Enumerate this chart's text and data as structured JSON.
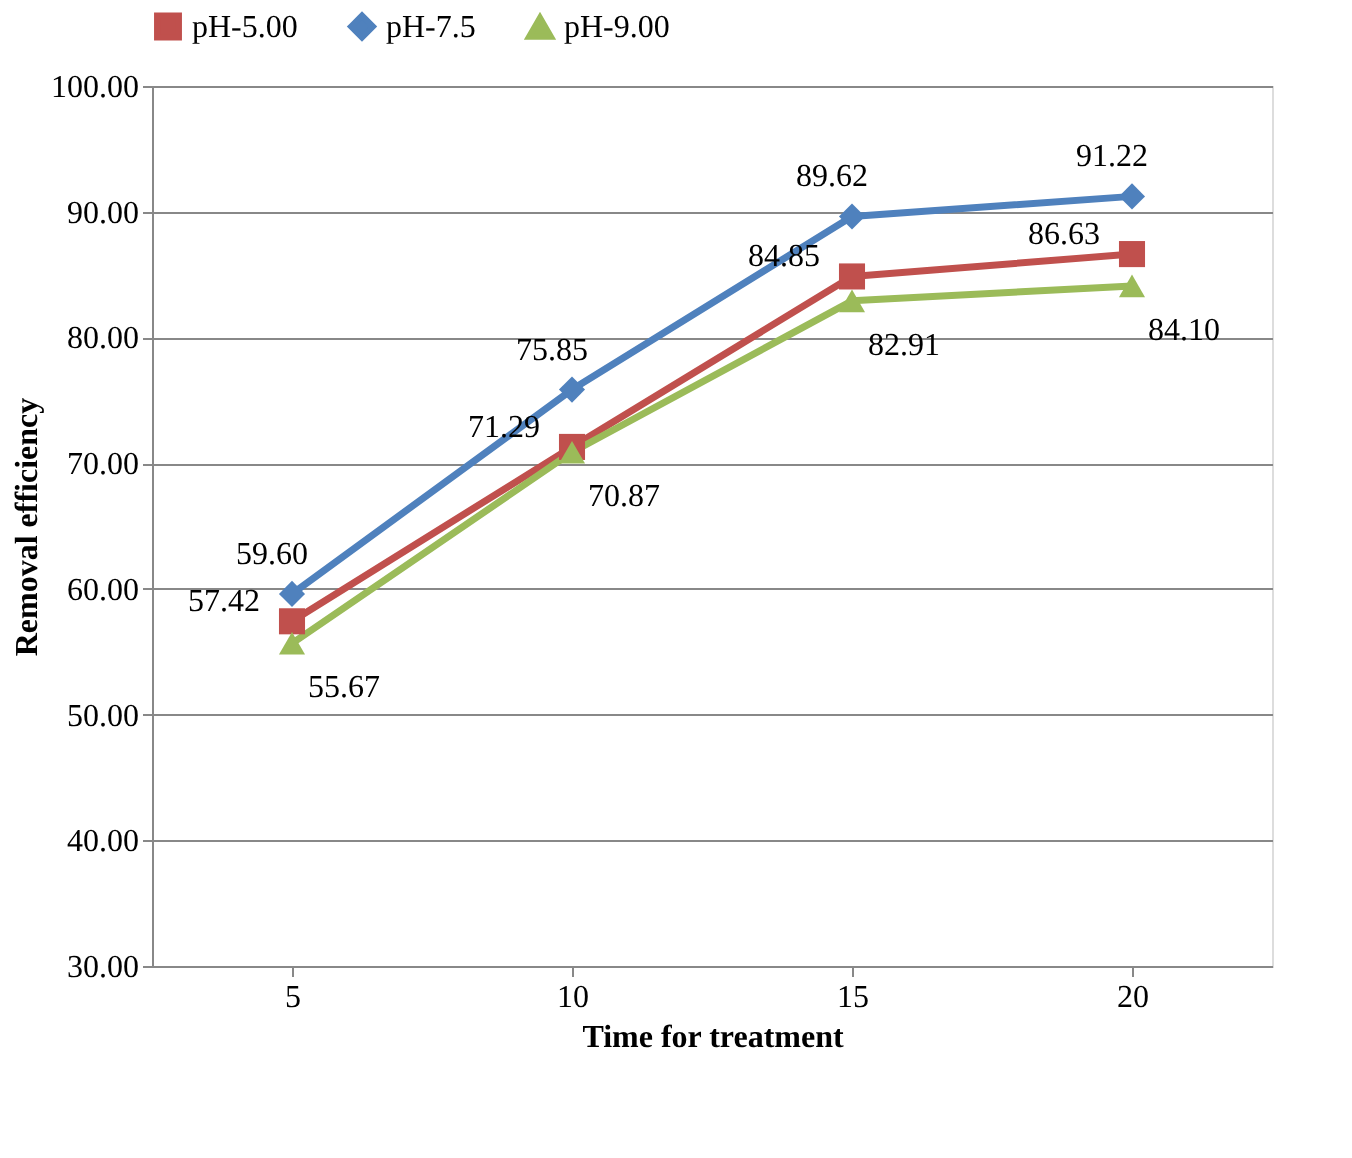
{
  "chart_data": {
    "type": "line",
    "xlabel": "Time for treatment",
    "ylabel": "Removal efficiency",
    "categories": [
      "5",
      "10",
      "15",
      "20"
    ],
    "series": [
      {
        "name": "pH-5.00",
        "color": "#c0504d",
        "marker": "square",
        "values": [
          57.42,
          71.29,
          84.85,
          86.63
        ],
        "value_labels": [
          "57.42",
          "71.29",
          "84.85",
          "86.63"
        ]
      },
      {
        "name": "pH-7.5",
        "color": "#4f81bd",
        "marker": "diamond",
        "values": [
          59.6,
          75.85,
          89.62,
          91.22
        ],
        "value_labels": [
          "59.60",
          "75.85",
          "89.62",
          "91.22"
        ]
      },
      {
        "name": "pH-9.00",
        "color": "#9bbb59",
        "marker": "triangle",
        "values": [
          55.67,
          70.87,
          82.91,
          84.1
        ],
        "value_labels": [
          "55.67",
          "70.87",
          "82.91",
          "84.10"
        ]
      }
    ],
    "ylim": [
      30,
      100
    ],
    "yticks": [
      {
        "value": 30,
        "label": "30.00"
      },
      {
        "value": 40,
        "label": "40.00"
      },
      {
        "value": 50,
        "label": "50.00"
      },
      {
        "value": 60,
        "label": "60.00"
      },
      {
        "value": 70,
        "label": "70.00"
      },
      {
        "value": 80,
        "label": "80.00"
      },
      {
        "value": 90,
        "label": "90.00"
      },
      {
        "value": 100,
        "label": "100.00"
      }
    ],
    "grid": "y",
    "legend": "top",
    "line_style": "solid"
  }
}
